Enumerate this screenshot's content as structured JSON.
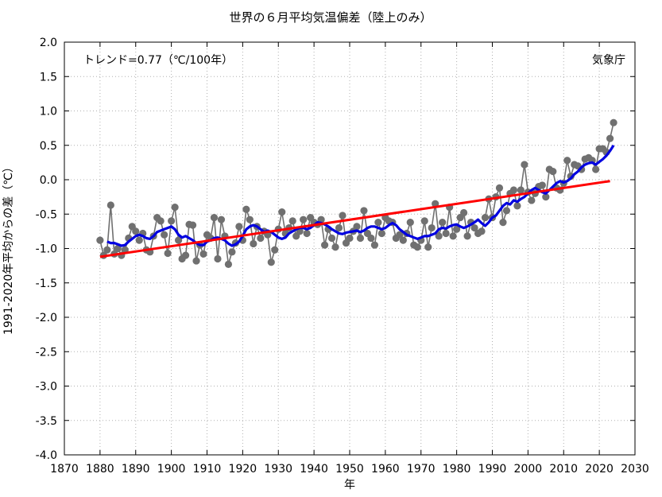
{
  "chart_data": {
    "type": "line",
    "title": "世界の６月平均気温偏差（陸上のみ）",
    "xlabel": "年",
    "ylabel": "1991-2020年平均からの差（℃）",
    "xlim": [
      1870,
      2030
    ],
    "ylim": [
      -4.0,
      2.0
    ],
    "x_ticks": [
      1870,
      1880,
      1890,
      1900,
      1910,
      1920,
      1930,
      1940,
      1950,
      1960,
      1970,
      1980,
      1990,
      2000,
      2010,
      2020,
      2030
    ],
    "y_ticks": [
      "2.0",
      "1.5",
      "1.0",
      "0.5",
      "0.0",
      "-0.5",
      "-1.0",
      "-1.5",
      "-2.0",
      "-2.5",
      "-3.0",
      "-3.5",
      "-4.0"
    ],
    "grid": "dotted",
    "annotations": {
      "trend": "トレンド=0.77（℃/100年）",
      "source": "気象庁"
    },
    "colors": {
      "annual": "#707070",
      "moving_average": "#0000e0",
      "trend": "#ff0000"
    },
    "series": [
      {
        "role": "annual",
        "start_year": 1880,
        "values": [
          -0.88,
          -1.1,
          -1.02,
          -0.37,
          -1.08,
          -1.0,
          -1.1,
          -1.02,
          -0.85,
          -0.68,
          -0.75,
          -0.88,
          -0.78,
          -1.02,
          -1.05,
          -0.82,
          -0.55,
          -0.6,
          -0.8,
          -1.07,
          -0.6,
          -0.4,
          -0.88,
          -1.15,
          -1.1,
          -0.65,
          -0.66,
          -1.18,
          -0.95,
          -1.08,
          -0.8,
          -0.85,
          -0.55,
          -1.15,
          -0.58,
          -0.82,
          -1.23,
          -1.05,
          -0.92,
          -0.68,
          -0.88,
          -0.43,
          -0.58,
          -0.93,
          -0.68,
          -0.85,
          -0.75,
          -0.8,
          -1.2,
          -1.02,
          -0.72,
          -0.47,
          -0.78,
          -0.7,
          -0.6,
          -0.82,
          -0.75,
          -0.58,
          -0.78,
          -0.55,
          -0.62,
          -0.65,
          -0.58,
          -0.95,
          -0.72,
          -0.85,
          -0.98,
          -0.7,
          -0.52,
          -0.92,
          -0.85,
          -0.75,
          -0.68,
          -0.85,
          -0.45,
          -0.78,
          -0.85,
          -0.95,
          -0.62,
          -0.78,
          -0.55,
          -0.6,
          -0.62,
          -0.85,
          -0.8,
          -0.88,
          -0.78,
          -0.62,
          -0.95,
          -0.98,
          -0.88,
          -0.6,
          -0.98,
          -0.7,
          -0.35,
          -0.82,
          -0.62,
          -0.78,
          -0.4,
          -0.82,
          -0.72,
          -0.55,
          -0.48,
          -0.82,
          -0.62,
          -0.7,
          -0.78,
          -0.75,
          -0.55,
          -0.28,
          -0.55,
          -0.25,
          -0.12,
          -0.62,
          -0.45,
          -0.2,
          -0.15,
          -0.38,
          -0.15,
          0.22,
          -0.18,
          -0.3,
          -0.2,
          -0.1,
          -0.08,
          -0.25,
          0.15,
          0.12,
          -0.12,
          -0.15,
          -0.05,
          0.28,
          0.05,
          0.22,
          0.2,
          0.15,
          0.3,
          0.32,
          0.28,
          0.15,
          0.45,
          0.45,
          0.4,
          0.6,
          0.83
        ]
      },
      {
        "role": "moving_average",
        "start_year": 1882,
        "values": [
          -0.9,
          -0.92,
          -0.92,
          -0.94,
          -0.96,
          -0.95,
          -0.9,
          -0.86,
          -0.82,
          -0.8,
          -0.82,
          -0.85,
          -0.86,
          -0.82,
          -0.76,
          -0.74,
          -0.72,
          -0.7,
          -0.68,
          -0.72,
          -0.8,
          -0.84,
          -0.82,
          -0.85,
          -0.88,
          -0.92,
          -0.95,
          -0.95,
          -0.9,
          -0.88,
          -0.85,
          -0.84,
          -0.86,
          -0.88,
          -0.93,
          -0.96,
          -0.94,
          -0.9,
          -0.82,
          -0.72,
          -0.68,
          -0.66,
          -0.68,
          -0.72,
          -0.76,
          -0.74,
          -0.76,
          -0.8,
          -0.84,
          -0.86,
          -0.84,
          -0.78,
          -0.75,
          -0.72,
          -0.7,
          -0.7,
          -0.72,
          -0.7,
          -0.66,
          -0.62,
          -0.63,
          -0.65,
          -0.68,
          -0.72,
          -0.75,
          -0.78,
          -0.79,
          -0.77,
          -0.76,
          -0.75,
          -0.74,
          -0.76,
          -0.74,
          -0.7,
          -0.68,
          -0.68,
          -0.7,
          -0.72,
          -0.7,
          -0.66,
          -0.63,
          -0.66,
          -0.72,
          -0.76,
          -0.8,
          -0.82,
          -0.84,
          -0.86,
          -0.84,
          -0.82,
          -0.82,
          -0.8,
          -0.78,
          -0.72,
          -0.7,
          -0.71,
          -0.68,
          -0.66,
          -0.65,
          -0.68,
          -0.7,
          -0.68,
          -0.65,
          -0.62,
          -0.58,
          -0.63,
          -0.67,
          -0.62,
          -0.55,
          -0.52,
          -0.45,
          -0.38,
          -0.34,
          -0.36,
          -0.3,
          -0.32,
          -0.28,
          -0.25,
          -0.2,
          -0.15,
          -0.12,
          -0.15,
          -0.18,
          -0.2,
          -0.15,
          -0.1,
          -0.05,
          -0.02,
          -0.04,
          -0.02,
          0.02,
          0.08,
          0.12,
          0.18,
          0.22,
          0.24,
          0.25,
          0.22,
          0.26,
          0.3,
          0.35,
          0.42,
          0.5
        ]
      },
      {
        "role": "trend",
        "x": [
          1880,
          2023
        ],
        "values": [
          -1.12,
          -0.02
        ]
      }
    ]
  }
}
